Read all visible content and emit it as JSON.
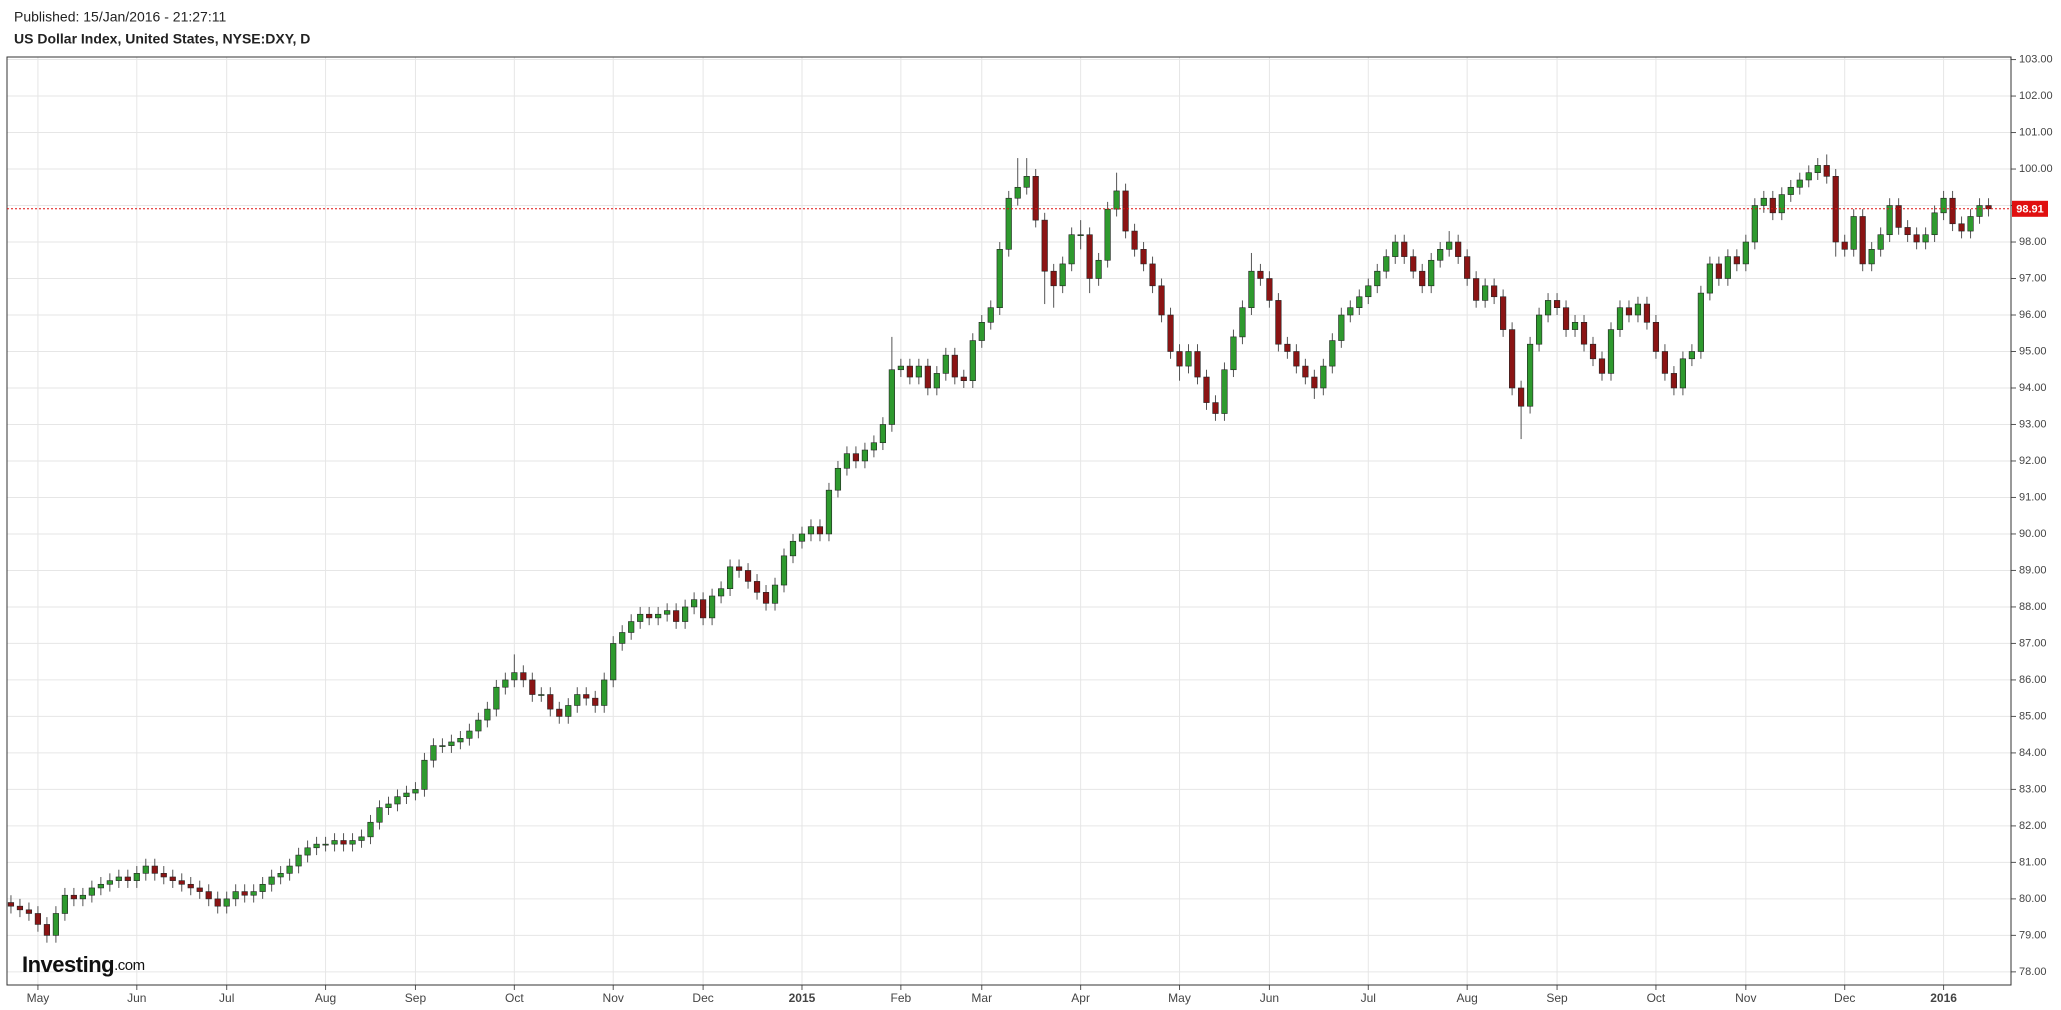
{
  "chart_data": {
    "type": "candlestick",
    "published": "Published: 15/Jan/2016 - 21:27:11",
    "title": "US Dollar Index, United States, NYSE:DXY, D",
    "brand": "Investing",
    "brand_suffix": ".com",
    "up_color": "#2e9a2e",
    "down_color": "#8b1414",
    "wick_color": "#555555",
    "price_line": 98.91,
    "price_line_color": "#e01010",
    "grid": true,
    "xlim": [
      -0.44,
      222.5
    ],
    "xticks": [
      {
        "value": 3,
        "label": "May"
      },
      {
        "value": 14,
        "label": "Jun"
      },
      {
        "value": 24,
        "label": "Jul"
      },
      {
        "value": 35,
        "label": "Aug"
      },
      {
        "value": 45,
        "label": "Sep"
      },
      {
        "value": 56,
        "label": "Oct"
      },
      {
        "value": 67,
        "label": "Nov"
      },
      {
        "value": 77,
        "label": "Dec"
      },
      {
        "value": 88,
        "label": "2015"
      },
      {
        "value": 99,
        "label": "Feb"
      },
      {
        "value": 108,
        "label": "Mar"
      },
      {
        "value": 119,
        "label": "Apr"
      },
      {
        "value": 130,
        "label": "May"
      },
      {
        "value": 140,
        "label": "Jun"
      },
      {
        "value": 151,
        "label": "Jul"
      },
      {
        "value": 162,
        "label": "Aug"
      },
      {
        "value": 172,
        "label": "Sep"
      },
      {
        "value": 183,
        "label": "Oct"
      },
      {
        "value": 193,
        "label": "Nov"
      },
      {
        "value": 204,
        "label": "Dec"
      },
      {
        "value": 215,
        "label": "2016"
      }
    ],
    "ylim": [
      77.64,
      103.07
    ],
    "yticks": [
      {
        "value": 78,
        "label": "78.00"
      },
      {
        "value": 79,
        "label": "79.00"
      },
      {
        "value": 80,
        "label": "80.00"
      },
      {
        "value": 81,
        "label": "81.00"
      },
      {
        "value": 82,
        "label": "82.00"
      },
      {
        "value": 83,
        "label": "83.00"
      },
      {
        "value": 84,
        "label": "84.00"
      },
      {
        "value": 85,
        "label": "85.00"
      },
      {
        "value": 86,
        "label": "86.00"
      },
      {
        "value": 87,
        "label": "87.00"
      },
      {
        "value": 88,
        "label": "88.00"
      },
      {
        "value": 89,
        "label": "89.00"
      },
      {
        "value": 90,
        "label": "90.00"
      },
      {
        "value": 91,
        "label": "91.00"
      },
      {
        "value": 92,
        "label": "92.00"
      },
      {
        "value": 93,
        "label": "93.00"
      },
      {
        "value": 94,
        "label": "94.00"
      },
      {
        "value": 95,
        "label": "95.00"
      },
      {
        "value": 96,
        "label": "96.00"
      },
      {
        "value": 97,
        "label": "97.00"
      },
      {
        "value": 98,
        "label": "98.00"
      },
      {
        "value": 99,
        "label": "99.00"
      },
      {
        "value": 100,
        "label": "100.00"
      },
      {
        "value": 101,
        "label": "101.00"
      },
      {
        "value": 102,
        "label": "102.00"
      },
      {
        "value": 103,
        "label": "103.00"
      }
    ],
    "open": [
      79.9,
      79.8,
      79.7,
      79.6,
      79.3,
      79.0,
      79.6,
      80.1,
      80.0,
      80.1,
      80.3,
      80.4,
      80.5,
      80.6,
      80.5,
      80.7,
      80.9,
      80.7,
      80.6,
      80.5,
      80.4,
      80.3,
      80.2,
      80.0,
      79.8,
      80.0,
      80.2,
      80.1,
      80.2,
      80.4,
      80.6,
      80.7,
      80.9,
      81.2,
      81.4,
      81.5,
      81.5,
      81.6,
      81.5,
      81.6,
      81.7,
      82.1,
      82.5,
      82.6,
      82.8,
      82.9,
      83.0,
      83.8,
      84.2,
      84.2,
      84.3,
      84.4,
      84.6,
      84.9,
      85.2,
      85.8,
      86.0,
      86.2,
      86.0,
      85.6,
      85.6,
      85.2,
      85.0,
      85.3,
      85.6,
      85.5,
      85.3,
      86.0,
      87.0,
      87.3,
      87.6,
      87.8,
      87.7,
      87.8,
      87.9,
      87.6,
      88.0,
      88.2,
      87.7,
      88.3,
      88.5,
      89.1,
      89.0,
      88.7,
      88.4,
      88.1,
      88.6,
      89.4,
      89.8,
      90.0,
      90.2,
      90.0,
      91.2,
      91.8,
      92.2,
      92.0,
      92.3,
      92.5,
      93.0,
      94.5,
      94.6,
      94.3,
      94.6,
      94.0,
      94.4,
      94.9,
      94.3,
      94.2,
      95.3,
      95.8,
      96.2,
      97.8,
      99.2,
      99.5,
      99.8,
      98.6,
      97.2,
      96.8,
      97.4,
      98.2,
      98.2,
      97.0,
      97.5,
      98.9,
      99.4,
      98.3,
      97.8,
      97.4,
      96.8,
      96.0,
      95.0,
      94.6,
      95.0,
      94.3,
      93.6,
      93.3,
      94.5,
      95.4,
      96.2,
      97.2,
      97.0,
      96.4,
      95.2,
      95.0,
      94.6,
      94.3,
      94.0,
      94.6,
      95.3,
      96.0,
      96.2,
      96.5,
      96.8,
      97.2,
      97.6,
      98.0,
      97.6,
      97.2,
      96.8,
      97.5,
      97.8,
      98.0,
      97.6,
      97.0,
      96.4,
      96.8,
      96.5,
      95.6,
      94.0,
      93.5,
      95.2,
      96.0,
      96.4,
      96.2,
      95.6,
      95.8,
      95.2,
      94.8,
      94.4,
      95.6,
      96.2,
      96.0,
      96.3,
      95.8,
      95.0,
      94.4,
      94.0,
      94.8,
      95.0,
      96.6,
      97.4,
      97.0,
      97.6,
      97.4,
      98.0,
      99.0,
      99.2,
      98.8,
      99.3,
      99.5,
      99.7,
      99.9,
      100.1,
      99.8,
      98.0,
      97.8,
      98.7,
      97.4,
      97.8,
      98.2,
      99.0,
      98.4,
      98.2,
      98.0,
      98.2,
      98.8,
      99.2,
      98.5,
      98.3,
      98.7,
      99.0
    ],
    "high": [
      80.1,
      80.0,
      79.9,
      79.8,
      79.5,
      79.8,
      80.3,
      80.3,
      80.3,
      80.5,
      80.6,
      80.7,
      80.8,
      80.8,
      80.9,
      81.1,
      81.1,
      80.9,
      80.8,
      80.7,
      80.6,
      80.5,
      80.4,
      80.2,
      80.2,
      80.4,
      80.4,
      80.4,
      80.6,
      80.8,
      80.9,
      81.1,
      81.4,
      81.6,
      81.7,
      81.7,
      81.8,
      81.8,
      81.8,
      81.9,
      82.3,
      82.7,
      82.8,
      83.0,
      83.1,
      83.2,
      84.0,
      84.4,
      84.4,
      84.5,
      84.6,
      84.8,
      85.1,
      85.4,
      86.0,
      86.2,
      86.7,
      86.4,
      86.2,
      85.8,
      85.8,
      85.4,
      85.5,
      85.8,
      85.8,
      85.7,
      86.2,
      87.2,
      87.5,
      87.8,
      88.0,
      88.0,
      88.0,
      88.1,
      88.1,
      88.2,
      88.4,
      88.4,
      88.5,
      88.7,
      89.3,
      89.3,
      89.2,
      88.9,
      88.6,
      88.8,
      89.6,
      90.0,
      90.2,
      90.4,
      90.4,
      91.4,
      92.0,
      92.4,
      92.4,
      92.5,
      92.7,
      93.2,
      95.4,
      94.8,
      94.8,
      94.8,
      94.8,
      94.6,
      95.1,
      95.1,
      94.5,
      95.5,
      96.0,
      96.4,
      98.0,
      99.4,
      100.3,
      100.3,
      100.0,
      98.8,
      97.4,
      97.6,
      98.4,
      98.6,
      98.4,
      97.7,
      99.1,
      99.9,
      99.6,
      98.5,
      98.0,
      97.6,
      97.0,
      96.2,
      95.2,
      95.2,
      95.2,
      94.5,
      93.8,
      94.7,
      95.6,
      96.4,
      97.7,
      97.4,
      97.2,
      96.6,
      95.4,
      95.2,
      94.8,
      94.5,
      94.8,
      95.5,
      96.2,
      96.4,
      96.7,
      97.0,
      97.4,
      97.8,
      98.2,
      98.2,
      97.8,
      97.4,
      97.7,
      98.0,
      98.3,
      98.2,
      97.8,
      97.2,
      97.0,
      97.0,
      96.7,
      95.8,
      94.2,
      95.4,
      96.2,
      96.6,
      96.6,
      96.4,
      96.0,
      96.0,
      95.4,
      95.0,
      95.8,
      96.4,
      96.4,
      96.5,
      96.5,
      96.0,
      95.2,
      94.6,
      95.0,
      95.2,
      96.8,
      97.6,
      97.6,
      97.8,
      97.8,
      98.2,
      99.2,
      99.4,
      99.4,
      99.5,
      99.7,
      99.9,
      100.1,
      100.3,
      100.4,
      100.0,
      98.2,
      98.9,
      98.9,
      98.0,
      98.4,
      99.2,
      99.2,
      98.6,
      98.4,
      98.4,
      99.0,
      99.4,
      99.4,
      98.7,
      98.9,
      99.2,
      99.2
    ],
    "low": [
      79.6,
      79.5,
      79.4,
      79.1,
      78.8,
      78.8,
      79.4,
      79.8,
      79.8,
      79.9,
      80.1,
      80.2,
      80.3,
      80.3,
      80.3,
      80.5,
      80.5,
      80.4,
      80.3,
      80.2,
      80.1,
      80.0,
      79.8,
      79.6,
      79.6,
      79.8,
      79.9,
      79.9,
      80.0,
      80.2,
      80.4,
      80.5,
      80.7,
      81.0,
      81.2,
      81.3,
      81.3,
      81.3,
      81.3,
      81.4,
      81.5,
      81.9,
      82.3,
      82.4,
      82.6,
      82.7,
      82.8,
      83.6,
      84.0,
      84.0,
      84.1,
      84.2,
      84.4,
      84.7,
      85.0,
      85.6,
      85.8,
      85.8,
      85.4,
      85.4,
      85.0,
      84.8,
      84.8,
      85.1,
      85.3,
      85.1,
      85.1,
      85.8,
      86.8,
      87.1,
      87.4,
      87.5,
      87.5,
      87.6,
      87.4,
      87.4,
      87.8,
      87.5,
      87.5,
      88.1,
      88.3,
      88.8,
      88.5,
      88.2,
      87.9,
      87.9,
      88.4,
      89.2,
      89.6,
      89.8,
      89.8,
      89.8,
      91.0,
      91.6,
      91.8,
      91.8,
      92.1,
      92.3,
      92.8,
      94.3,
      94.1,
      94.1,
      93.8,
      93.8,
      94.2,
      94.1,
      94.0,
      94.0,
      95.1,
      95.6,
      96.0,
      97.6,
      99.0,
      99.3,
      98.4,
      96.3,
      96.2,
      96.6,
      97.2,
      97.8,
      96.6,
      96.8,
      97.3,
      98.7,
      98.1,
      97.6,
      97.2,
      96.6,
      95.8,
      94.8,
      94.2,
      94.4,
      94.1,
      93.4,
      93.1,
      93.1,
      94.3,
      95.2,
      96.0,
      96.8,
      96.2,
      95.0,
      94.8,
      94.4,
      94.1,
      93.7,
      93.8,
      94.4,
      95.1,
      95.8,
      96.0,
      96.3,
      96.6,
      97.0,
      97.4,
      97.4,
      97.0,
      96.6,
      96.6,
      97.3,
      97.6,
      97.4,
      96.8,
      96.2,
      96.2,
      96.3,
      95.4,
      93.8,
      92.6,
      93.3,
      95.0,
      95.8,
      96.0,
      95.4,
      95.4,
      95.0,
      94.6,
      94.2,
      94.2,
      95.4,
      95.8,
      95.8,
      95.6,
      94.8,
      94.2,
      93.8,
      93.8,
      94.6,
      94.8,
      96.4,
      96.8,
      96.8,
      97.2,
      97.2,
      97.8,
      98.8,
      98.6,
      98.6,
      99.1,
      99.3,
      99.5,
      99.7,
      99.6,
      97.6,
      97.6,
      97.6,
      97.2,
      97.2,
      97.6,
      98.0,
      98.2,
      98.0,
      97.8,
      97.8,
      98.0,
      98.6,
      98.3,
      98.1,
      98.1,
      98.5,
      98.7
    ],
    "close": [
      79.8,
      79.7,
      79.6,
      79.3,
      79.0,
      79.6,
      80.1,
      80.0,
      80.1,
      80.3,
      80.4,
      80.5,
      80.6,
      80.5,
      80.7,
      80.9,
      80.7,
      80.6,
      80.5,
      80.4,
      80.3,
      80.2,
      80.0,
      79.8,
      80.0,
      80.2,
      80.1,
      80.2,
      80.4,
      80.6,
      80.7,
      80.9,
      81.2,
      81.4,
      81.5,
      81.5,
      81.6,
      81.5,
      81.6,
      81.7,
      82.1,
      82.5,
      82.6,
      82.8,
      82.9,
      83.0,
      83.8,
      84.2,
      84.2,
      84.3,
      84.4,
      84.6,
      84.9,
      85.2,
      85.8,
      86.0,
      86.2,
      86.0,
      85.6,
      85.6,
      85.2,
      85.0,
      85.3,
      85.6,
      85.5,
      85.3,
      86.0,
      87.0,
      87.3,
      87.6,
      87.8,
      87.7,
      87.8,
      87.9,
      87.6,
      88.0,
      88.2,
      87.7,
      88.3,
      88.5,
      89.1,
      89.0,
      88.7,
      88.4,
      88.1,
      88.6,
      89.4,
      89.8,
      90.0,
      90.2,
      90.0,
      91.2,
      91.8,
      92.2,
      92.0,
      92.3,
      92.5,
      93.0,
      94.5,
      94.6,
      94.3,
      94.6,
      94.0,
      94.4,
      94.9,
      94.3,
      94.2,
      95.3,
      95.8,
      96.2,
      97.8,
      99.2,
      99.5,
      99.8,
      98.6,
      97.2,
      96.8,
      97.4,
      98.2,
      98.2,
      97.0,
      97.5,
      98.9,
      99.4,
      98.3,
      97.8,
      97.4,
      96.8,
      96.0,
      95.0,
      94.6,
      95.0,
      94.3,
      93.6,
      93.3,
      94.5,
      95.4,
      96.2,
      97.2,
      97.0,
      96.4,
      95.2,
      95.0,
      94.6,
      94.3,
      94.0,
      94.6,
      95.3,
      96.0,
      96.2,
      96.5,
      96.8,
      97.2,
      97.6,
      98.0,
      97.6,
      97.2,
      96.8,
      97.5,
      97.8,
      98.0,
      97.6,
      97.0,
      96.4,
      96.8,
      96.5,
      95.6,
      94.0,
      93.5,
      95.2,
      96.0,
      96.4,
      96.2,
      95.6,
      95.8,
      95.2,
      94.8,
      94.4,
      95.6,
      96.2,
      96.0,
      96.3,
      95.8,
      95.0,
      94.4,
      94.0,
      94.8,
      95.0,
      96.6,
      97.4,
      97.0,
      97.6,
      97.4,
      98.0,
      99.0,
      99.2,
      98.8,
      99.3,
      99.5,
      99.7,
      99.9,
      100.1,
      99.8,
      98.0,
      97.8,
      98.7,
      97.4,
      97.8,
      98.2,
      99.0,
      98.4,
      98.2,
      98.0,
      98.2,
      98.8,
      99.2,
      98.5,
      98.3,
      98.7,
      99.0,
      98.91
    ]
  }
}
